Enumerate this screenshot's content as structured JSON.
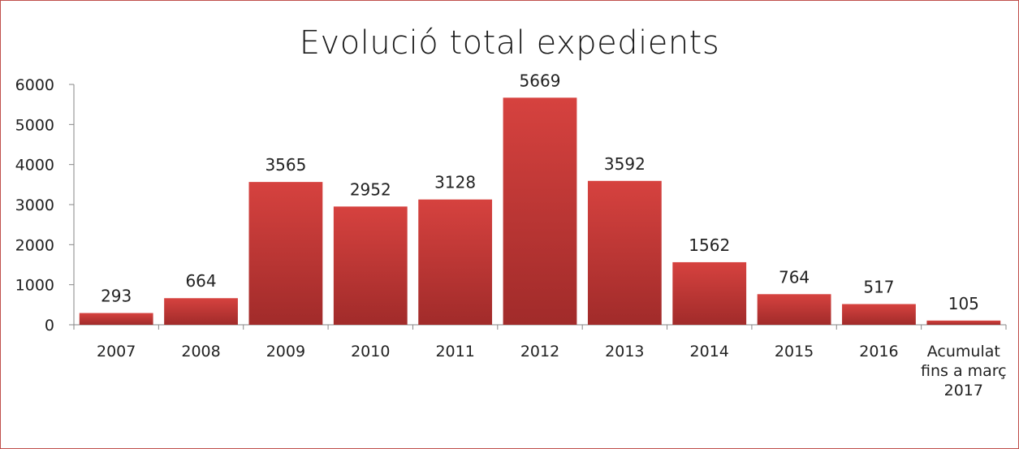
{
  "chart_data": {
    "type": "bar",
    "title": "Evolució total expedients",
    "categories": [
      "2007",
      "2008",
      "2009",
      "2010",
      "2011",
      "2012",
      "2013",
      "2014",
      "2015",
      "2016",
      [
        "Acumulat",
        "fins a març",
        "2017"
      ]
    ],
    "values": [
      293,
      664,
      3565,
      2952,
      3128,
      5669,
      3592,
      1562,
      764,
      517,
      105
    ],
    "ylim": [
      0,
      6000
    ],
    "yticks": [
      0,
      1000,
      2000,
      3000,
      4000,
      5000,
      6000
    ],
    "grid": false,
    "data_labels": true,
    "colors": {
      "bar_top": "#d6423f",
      "bar_bottom": "#a12b2a",
      "frame": "#c0504d",
      "axis": "#868686"
    }
  }
}
